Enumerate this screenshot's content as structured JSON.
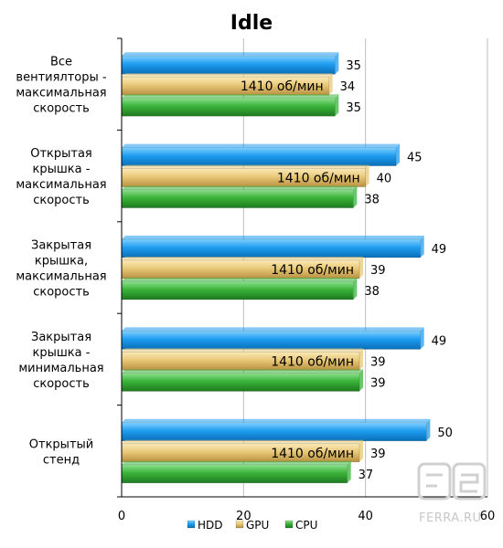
{
  "chart_data": {
    "type": "bar",
    "orientation": "horizontal",
    "title": "Idle",
    "categories": [
      [
        "Все",
        "вентиялторы -",
        "максимальная",
        "скорость"
      ],
      [
        "Открытая",
        "крышка -",
        "максимальная",
        "скорость"
      ],
      [
        "Закрытая",
        "крышка,",
        "максимальная",
        "скорость"
      ],
      [
        "Закрытая",
        "крышка -",
        "минимальная",
        "скорость"
      ],
      [
        "Открытый",
        "стенд"
      ]
    ],
    "series": [
      {
        "name": "HDD",
        "color": "#1e9cf0",
        "values": [
          35,
          45,
          49,
          49,
          50
        ]
      },
      {
        "name": "GPU",
        "color": "#e8c878",
        "values": [
          34,
          40,
          39,
          39,
          39
        ]
      },
      {
        "name": "CPU",
        "color": "#3ab43a",
        "values": [
          35,
          38,
          38,
          39,
          37
        ]
      }
    ],
    "bar_annotation": "1410 об/мин",
    "annotated_series": "GPU",
    "xlim": [
      0,
      60
    ],
    "xticks": [
      0,
      20,
      40,
      60
    ],
    "grid": true,
    "legend_position": "bottom"
  },
  "watermark": "FERRA.RU"
}
